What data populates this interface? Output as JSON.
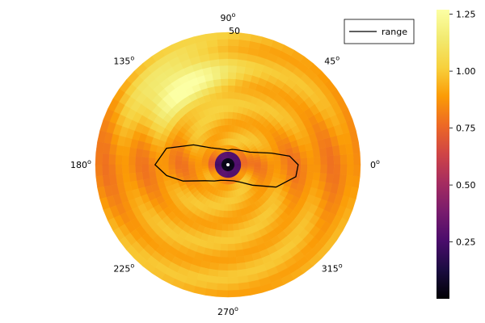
{
  "chart_data": {
    "type": "heatmap",
    "projection": "polar",
    "title": "",
    "radial_ticks": [
      "50"
    ],
    "angle_ticks": [
      {
        "deg": 0,
        "label": "0",
        "unit": "o"
      },
      {
        "deg": 45,
        "label": "45",
        "unit": "o"
      },
      {
        "deg": 90,
        "label": "90",
        "unit": "o"
      },
      {
        "deg": 135,
        "label": "135",
        "unit": "o"
      },
      {
        "deg": 180,
        "label": "180",
        "unit": "o"
      },
      {
        "deg": 225,
        "label": "225",
        "unit": "o"
      },
      {
        "deg": 270,
        "label": "270",
        "unit": "o"
      },
      {
        "deg": 315,
        "label": "315",
        "unit": "o"
      }
    ],
    "colorbar": {
      "colormap": "inferno",
      "range": [
        0.0,
        1.27
      ],
      "ticks": [
        "0.25",
        "0.50",
        "0.75",
        "1.00",
        "1.25"
      ],
      "tick_values": [
        0.25,
        0.5,
        0.75,
        1.0,
        1.25
      ]
    },
    "heatmap_description": {
      "radial_bins": 20,
      "angular_bins": 72,
      "center_value": 0.0,
      "outer_typical_value": 1.0,
      "peak_value": 1.27,
      "peak_angles_deg": [
        122,
        302
      ]
    },
    "series": [
      {
        "name": "range",
        "color": "#000000",
        "polar_points_r_frac_theta_deg": [
          [
            0.53,
            0
          ],
          [
            0.47,
            8
          ],
          [
            0.34,
            15
          ],
          [
            0.19,
            30
          ],
          [
            0.15,
            45
          ],
          [
            0.13,
            60
          ],
          [
            0.12,
            75
          ],
          [
            0.11,
            90
          ],
          [
            0.12,
            105
          ],
          [
            0.14,
            120
          ],
          [
            0.18,
            135
          ],
          [
            0.3,
            150
          ],
          [
            0.48,
            165
          ],
          [
            0.55,
            180
          ],
          [
            0.47,
            190
          ],
          [
            0.36,
            200
          ],
          [
            0.21,
            215
          ],
          [
            0.16,
            230
          ],
          [
            0.13,
            245
          ],
          [
            0.12,
            260
          ],
          [
            0.12,
            275
          ],
          [
            0.13,
            290
          ],
          [
            0.16,
            305
          ],
          [
            0.24,
            320
          ],
          [
            0.4,
            335
          ],
          [
            0.52,
            350
          ],
          [
            0.53,
            360
          ]
        ]
      }
    ],
    "legend": {
      "position": "top-right",
      "entries": [
        "range"
      ]
    }
  }
}
